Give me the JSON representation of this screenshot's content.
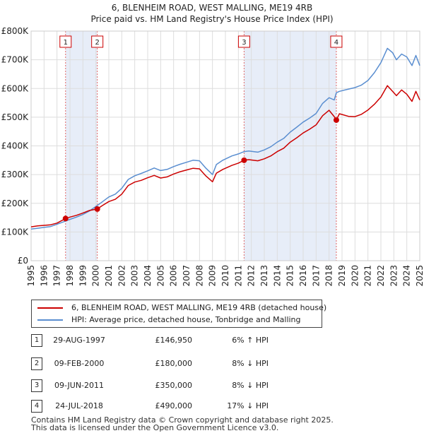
{
  "chart_data": {
    "type": "line",
    "title": "6, BLENHEIM ROAD, WEST MALLING, ME19 4RB",
    "subtitle": "Price paid vs. HM Land Registry's House Price Index (HPI)",
    "xlim": [
      1995,
      2025
    ],
    "ylim": [
      0,
      800000
    ],
    "x_ticks": [
      "1995",
      "1996",
      "1997",
      "1998",
      "1999",
      "2000",
      "2001",
      "2002",
      "2003",
      "2004",
      "2005",
      "2006",
      "2007",
      "2008",
      "2009",
      "2010",
      "2011",
      "2012",
      "2013",
      "2014",
      "2015",
      "2016",
      "2017",
      "2018",
      "2019",
      "2020",
      "2021",
      "2022",
      "2023",
      "2024",
      "2025"
    ],
    "y_ticks": [
      {
        "value": 0,
        "label": "£0"
      },
      {
        "value": 100000,
        "label": "£100K"
      },
      {
        "value": 200000,
        "label": "£200K"
      },
      {
        "value": 300000,
        "label": "£300K"
      },
      {
        "value": 400000,
        "label": "£400K"
      },
      {
        "value": 500000,
        "label": "£500K"
      },
      {
        "value": 600000,
        "label": "£600K"
      },
      {
        "value": 700000,
        "label": "£700K"
      },
      {
        "value": 800000,
        "label": "£800K"
      }
    ],
    "series": [
      {
        "name": "6, BLENHEIM ROAD, WEST MALLING, ME19 4RB (detached house)",
        "color": "#cc0000",
        "x": [
          1995.0,
          1995.5,
          1996.0,
          1996.5,
          1997.0,
          1997.66,
          1998.0,
          1998.5,
          1999.0,
          1999.5,
          2000.1,
          2000.5,
          2001.0,
          2001.5,
          2002.0,
          2002.5,
          2003.0,
          2003.5,
          2004.0,
          2004.5,
          2005.0,
          2005.5,
          2006.0,
          2006.5,
          2007.0,
          2007.5,
          2008.0,
          2008.5,
          2009.0,
          2009.3,
          2009.8,
          2010.5,
          2011.0,
          2011.44,
          2011.8,
          2012.5,
          2013.0,
          2013.5,
          2014.0,
          2014.5,
          2015.0,
          2015.5,
          2016.0,
          2016.5,
          2017.0,
          2017.5,
          2018.0,
          2018.4,
          2018.56,
          2018.8,
          2019.5,
          2020.0,
          2020.5,
          2021.0,
          2021.5,
          2022.0,
          2022.5,
          2022.9,
          2023.2,
          2023.6,
          2024.0,
          2024.4,
          2024.7,
          2025.0
        ],
        "values": [
          118000,
          121000,
          123000,
          125000,
          131000,
          146950,
          152000,
          158000,
          166000,
          175000,
          180000,
          192000,
          206000,
          214000,
          232000,
          262000,
          274000,
          280000,
          289000,
          297000,
          288000,
          292000,
          302000,
          310000,
          316000,
          322000,
          320000,
          295000,
          275000,
          305000,
          318000,
          332000,
          340000,
          350000,
          352000,
          348000,
          355000,
          365000,
          380000,
          392000,
          413000,
          428000,
          445000,
          458000,
          473000,
          505000,
          524000,
          502000,
          490000,
          512000,
          503000,
          502000,
          510000,
          525000,
          545000,
          570000,
          610000,
          590000,
          575000,
          595000,
          580000,
          555000,
          590000,
          560000
        ]
      },
      {
        "name": "HPI: Average price, detached house, Tonbridge and Malling",
        "color": "#5a8ed0",
        "x": [
          1995.0,
          1995.5,
          1996.0,
          1996.5,
          1997.0,
          1997.66,
          1998.0,
          1998.5,
          1999.0,
          1999.5,
          2000.1,
          2000.5,
          2001.0,
          2001.5,
          2002.0,
          2002.5,
          2003.0,
          2003.5,
          2004.0,
          2004.5,
          2005.0,
          2005.5,
          2006.0,
          2006.5,
          2007.0,
          2007.5,
          2008.0,
          2008.5,
          2009.0,
          2009.3,
          2009.8,
          2010.5,
          2011.0,
          2011.44,
          2011.8,
          2012.5,
          2013.0,
          2013.5,
          2014.0,
          2014.5,
          2015.0,
          2015.5,
          2016.0,
          2016.5,
          2017.0,
          2017.5,
          2018.0,
          2018.4,
          2018.56,
          2018.8,
          2019.5,
          2020.0,
          2020.5,
          2021.0,
          2021.5,
          2022.0,
          2022.5,
          2022.9,
          2023.2,
          2023.6,
          2024.0,
          2024.4,
          2024.7,
          2025.0
        ],
        "values": [
          110000,
          113000,
          116000,
          119000,
          127000,
          138000,
          144000,
          152000,
          161000,
          173000,
          192000,
          205000,
          222000,
          232000,
          252000,
          283000,
          296000,
          304000,
          313000,
          323000,
          314000,
          318000,
          328000,
          336000,
          343000,
          350000,
          348000,
          322000,
          300000,
          335000,
          350000,
          365000,
          372000,
          380000,
          382000,
          378000,
          386000,
          397000,
          413000,
          426000,
          448000,
          465000,
          483000,
          497000,
          513000,
          548000,
          568000,
          560000,
          585000,
          590000,
          598000,
          603000,
          612000,
          628000,
          655000,
          690000,
          740000,
          725000,
          700000,
          720000,
          710000,
          680000,
          715000,
          680000
        ]
      }
    ],
    "sales": [
      {
        "id": "1",
        "x": 1997.66,
        "value": 146950
      },
      {
        "id": "2",
        "x": 2000.11,
        "value": 180000
      },
      {
        "id": "3",
        "x": 2011.44,
        "value": 350000
      },
      {
        "id": "4",
        "x": 2018.56,
        "value": 490000
      }
    ],
    "shaded_periods": [
      [
        1997.66,
        2000.11
      ],
      [
        2011.44,
        2018.56
      ]
    ]
  },
  "transactions": [
    {
      "id": "1",
      "date": "29-AUG-1997",
      "price": "£146,950",
      "hpi": "6% ↑ HPI"
    },
    {
      "id": "2",
      "date": "09-FEB-2000",
      "price": "£180,000",
      "hpi": "8% ↓ HPI"
    },
    {
      "id": "3",
      "date": "09-JUN-2011",
      "price": "£350,000",
      "hpi": "8% ↓ HPI"
    },
    {
      "id": "4",
      "date": "24-JUL-2018",
      "price": "£490,000",
      "hpi": "17% ↓ HPI"
    }
  ],
  "footer": {
    "line1": "Contains HM Land Registry data © Crown copyright and database right 2025.",
    "line2": "This data is licensed under the Open Government Licence v3.0."
  }
}
